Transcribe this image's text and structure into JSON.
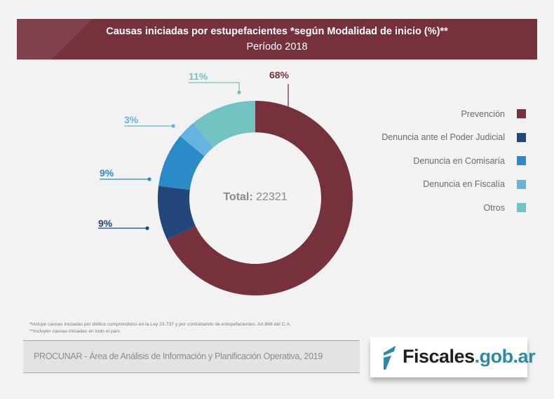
{
  "header": {
    "title": "Causas iniciadas por estupefacientes *según Modalidad de inicio (%)**",
    "subtitle": "Período 2018"
  },
  "chart_data": {
    "type": "pie",
    "donut": true,
    "title": "Causas iniciadas por estupefacientes *según Modalidad de inicio (%)**",
    "subtitle": "Período 2018",
    "categories": [
      "Prevención",
      "Denuncia ante el Poder Judicial",
      "Denuncia en Comisaría",
      "Denuncia en Fiscalía",
      "Otros"
    ],
    "values": [
      68,
      9,
      9,
      3,
      11
    ],
    "labels": [
      "68%",
      "9%",
      "9%",
      "3%",
      "11%"
    ],
    "colors": [
      "#76313d",
      "#23467b",
      "#2b8bc8",
      "#66b2e0",
      "#72c4c3"
    ],
    "label_colors": [
      "#76313d",
      "#23467b",
      "#2b8bc8",
      "#66b2e0",
      "#72c4c3"
    ],
    "start_angle_deg": 0,
    "direction": "clockwise",
    "center_label": {
      "prefix": "Total:",
      "value": "22321"
    },
    "legend": "right"
  },
  "footnotes": [
    "*Incluye causas iniciadas por delitos comprendidos en la Ley 23.737 y por contrabando de estupefacientes. Art.866 del C.A.",
    "**Incluyen causas iniciadas en todo el país"
  ],
  "source": "PROCUNAR - Área de Análisis de Información y Planificación Operativa, 2019",
  "logo": {
    "part1": "Fiscales",
    "part2": ".gob.ar",
    "mark_color": "#2a8aa8"
  }
}
